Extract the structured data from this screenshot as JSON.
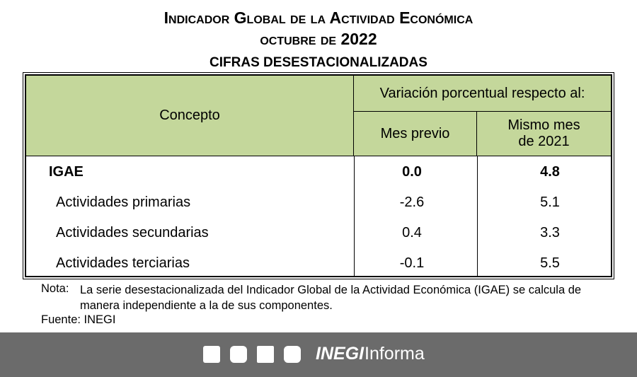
{
  "header": {
    "title": "Indicador Global de la Actividad Económica",
    "period": "octubre de 2022",
    "subtitle": "CIFRAS DESESTACIONALIZADAS"
  },
  "table": {
    "concept_header": "Concepto",
    "group_header": "Variación porcentual respecto al:",
    "columns": [
      "Mes previo",
      "Mismo mes de 2021"
    ],
    "rows": [
      [
        "IGAE",
        "0.0",
        "4.8"
      ],
      [
        "Actividades primarias",
        "-2.6",
        "5.1"
      ],
      [
        "Actividades secundarias",
        "0.4",
        "3.3"
      ],
      [
        "Actividades terciarias",
        "-0.1",
        "5.5"
      ]
    ]
  },
  "notes": {
    "note_label": "Nota:",
    "note": "La serie desestacionalizada del Indicador Global de la Actividad Económica (IGAE) se calcula de manera independiente a la de sus componentes.",
    "source": "Fuente: INEGI"
  },
  "footer": {
    "brand": "INEGI",
    "brand_suffix": "Informa"
  }
}
